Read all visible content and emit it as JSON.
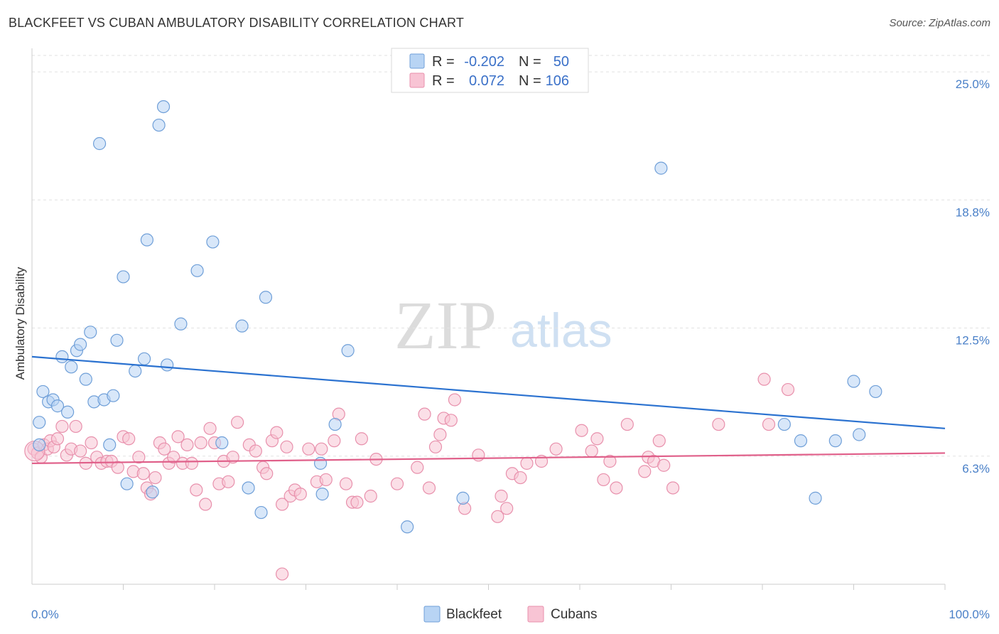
{
  "header": {
    "title": "BLACKFEET VS CUBAN AMBULATORY DISABILITY CORRELATION CHART",
    "source": "Source: ZipAtlas.com"
  },
  "watermark": {
    "zip": "ZIP",
    "atlas": "atlas"
  },
  "colors": {
    "blackfeet_fill": "#b8d4f4",
    "blackfeet_stroke": "#6f9fd8",
    "blackfeet_line": "#2b72d0",
    "cubans_fill": "#f8c4d4",
    "cubans_stroke": "#e890ac",
    "cubans_line": "#e0608a",
    "axis_label": "#4a80c8"
  },
  "legend": {
    "rows": [
      {
        "r_label": "R =",
        "r_value": "-0.202",
        "n_label": "N =",
        "n_value": "50"
      },
      {
        "r_label": "R =",
        "r_value": "0.072",
        "n_label": "N =",
        "n_value": "106"
      }
    ],
    "bottom": [
      "Blackfeet",
      "Cubans"
    ]
  },
  "chart_data": {
    "type": "scatter",
    "title": "BLACKFEET VS CUBAN AMBULATORY DISABILITY CORRELATION CHART",
    "xlabel": "",
    "ylabel": "Ambulatory Disability",
    "xlim": [
      0,
      100
    ],
    "ylim": [
      0,
      25.0
    ],
    "x_tick_labels": [
      "0.0%",
      "100.0%"
    ],
    "y_tick_labels": [
      "25.0%",
      "18.8%",
      "12.5%",
      "6.3%"
    ],
    "y_tick_values": [
      25.0,
      18.75,
      12.5,
      6.25
    ],
    "series": [
      {
        "name": "Blackfeet",
        "r": -0.202,
        "n": 50,
        "trend": [
          [
            0,
            11.1
          ],
          [
            100,
            7.6
          ]
        ],
        "points": [
          [
            0.8,
            6.8
          ],
          [
            0.8,
            7.9
          ],
          [
            1.2,
            9.4
          ],
          [
            1.8,
            8.9
          ],
          [
            2.3,
            9.0
          ],
          [
            2.8,
            8.7
          ],
          [
            3.3,
            11.1
          ],
          [
            3.9,
            8.4
          ],
          [
            4.3,
            10.6
          ],
          [
            4.9,
            11.4
          ],
          [
            5.3,
            11.7
          ],
          [
            5.9,
            10.0
          ],
          [
            6.4,
            12.3
          ],
          [
            6.8,
            8.9
          ],
          [
            7.4,
            21.5
          ],
          [
            7.9,
            9.0
          ],
          [
            8.5,
            6.8
          ],
          [
            8.9,
            9.2
          ],
          [
            9.3,
            11.9
          ],
          [
            10.0,
            15.0
          ],
          [
            10.4,
            4.9
          ],
          [
            11.3,
            10.4
          ],
          [
            12.3,
            11.0
          ],
          [
            12.6,
            16.8
          ],
          [
            13.2,
            4.5
          ],
          [
            13.9,
            22.4
          ],
          [
            14.4,
            23.3
          ],
          [
            14.8,
            10.7
          ],
          [
            16.3,
            12.7
          ],
          [
            18.1,
            15.3
          ],
          [
            19.8,
            16.7
          ],
          [
            20.8,
            6.9
          ],
          [
            23.0,
            12.6
          ],
          [
            23.7,
            4.7
          ],
          [
            25.1,
            3.5
          ],
          [
            25.6,
            14.0
          ],
          [
            31.6,
            5.9
          ],
          [
            31.8,
            4.4
          ],
          [
            33.2,
            7.8
          ],
          [
            34.6,
            11.4
          ],
          [
            41.1,
            2.8
          ],
          [
            47.2,
            4.2
          ],
          [
            68.9,
            20.3
          ],
          [
            82.4,
            7.8
          ],
          [
            84.2,
            7.0
          ],
          [
            85.8,
            4.2
          ],
          [
            88.0,
            7.0
          ],
          [
            90.0,
            9.9
          ],
          [
            90.6,
            7.3
          ],
          [
            92.4,
            9.4
          ]
        ]
      },
      {
        "name": "Cubans",
        "r": 0.072,
        "n": 106,
        "trend": [
          [
            0,
            5.9
          ],
          [
            100,
            6.4
          ]
        ],
        "points": [
          [
            0.2,
            6.6
          ],
          [
            0.6,
            6.4
          ],
          [
            1.0,
            6.2
          ],
          [
            1.3,
            6.8
          ],
          [
            1.7,
            6.6
          ],
          [
            2.0,
            7.0
          ],
          [
            2.4,
            6.7
          ],
          [
            2.8,
            7.1
          ],
          [
            3.3,
            7.7
          ],
          [
            3.8,
            6.3
          ],
          [
            4.3,
            6.6
          ],
          [
            4.8,
            7.7
          ],
          [
            5.3,
            6.5
          ],
          [
            5.9,
            5.9
          ],
          [
            6.5,
            6.9
          ],
          [
            7.1,
            6.2
          ],
          [
            7.6,
            5.9
          ],
          [
            8.2,
            6.0
          ],
          [
            8.7,
            6.0
          ],
          [
            9.4,
            5.7
          ],
          [
            10.0,
            7.2
          ],
          [
            10.6,
            7.1
          ],
          [
            11.1,
            5.5
          ],
          [
            11.7,
            6.2
          ],
          [
            12.2,
            5.4
          ],
          [
            12.6,
            4.7
          ],
          [
            13.0,
            4.4
          ],
          [
            13.5,
            5.2
          ],
          [
            14.0,
            6.9
          ],
          [
            14.5,
            6.6
          ],
          [
            15.0,
            5.9
          ],
          [
            15.5,
            6.2
          ],
          [
            16.0,
            7.2
          ],
          [
            16.5,
            5.9
          ],
          [
            17.0,
            6.8
          ],
          [
            17.5,
            5.9
          ],
          [
            18.0,
            4.6
          ],
          [
            18.5,
            6.9
          ],
          [
            19.0,
            3.9
          ],
          [
            19.5,
            7.6
          ],
          [
            20.0,
            6.9
          ],
          [
            20.5,
            4.9
          ],
          [
            21.0,
            6.0
          ],
          [
            21.5,
            5.0
          ],
          [
            22.0,
            6.2
          ],
          [
            22.5,
            7.9
          ],
          [
            23.8,
            6.8
          ],
          [
            24.5,
            6.5
          ],
          [
            25.3,
            5.7
          ],
          [
            25.7,
            5.4
          ],
          [
            26.3,
            7.0
          ],
          [
            26.8,
            7.4
          ],
          [
            27.4,
            3.9
          ],
          [
            27.9,
            6.7
          ],
          [
            28.3,
            4.3
          ],
          [
            28.8,
            4.6
          ],
          [
            29.4,
            4.4
          ],
          [
            30.3,
            6.6
          ],
          [
            31.2,
            5.0
          ],
          [
            31.7,
            6.6
          ],
          [
            32.2,
            5.1
          ],
          [
            33.1,
            7.0
          ],
          [
            33.6,
            8.3
          ],
          [
            34.4,
            4.9
          ],
          [
            35.1,
            4.0
          ],
          [
            35.6,
            4.0
          ],
          [
            36.1,
            7.1
          ],
          [
            37.1,
            4.3
          ],
          [
            37.7,
            6.1
          ],
          [
            40.0,
            4.9
          ],
          [
            42.2,
            5.7
          ],
          [
            43.0,
            8.3
          ],
          [
            43.5,
            4.7
          ],
          [
            44.2,
            6.7
          ],
          [
            44.7,
            7.3
          ],
          [
            45.1,
            8.1
          ],
          [
            45.9,
            8.0
          ],
          [
            46.3,
            9.0
          ],
          [
            47.4,
            3.7
          ],
          [
            48.9,
            6.3
          ],
          [
            51.0,
            3.3
          ],
          [
            51.4,
            4.3
          ],
          [
            52.0,
            3.7
          ],
          [
            52.6,
            5.4
          ],
          [
            53.5,
            5.2
          ],
          [
            54.2,
            5.9
          ],
          [
            55.8,
            6.0
          ],
          [
            57.4,
            6.6
          ],
          [
            60.2,
            7.5
          ],
          [
            61.3,
            6.5
          ],
          [
            61.9,
            7.1
          ],
          [
            62.6,
            5.1
          ],
          [
            63.3,
            6.0
          ],
          [
            64.0,
            4.7
          ],
          [
            65.2,
            7.8
          ],
          [
            67.1,
            5.5
          ],
          [
            67.5,
            6.2
          ],
          [
            68.1,
            6.0
          ],
          [
            68.7,
            7.0
          ],
          [
            69.2,
            5.8
          ],
          [
            70.2,
            4.7
          ],
          [
            75.2,
            7.8
          ],
          [
            80.2,
            10.0
          ],
          [
            80.7,
            7.8
          ],
          [
            82.8,
            9.5
          ],
          [
            27.4,
            0.5
          ]
        ]
      }
    ]
  }
}
